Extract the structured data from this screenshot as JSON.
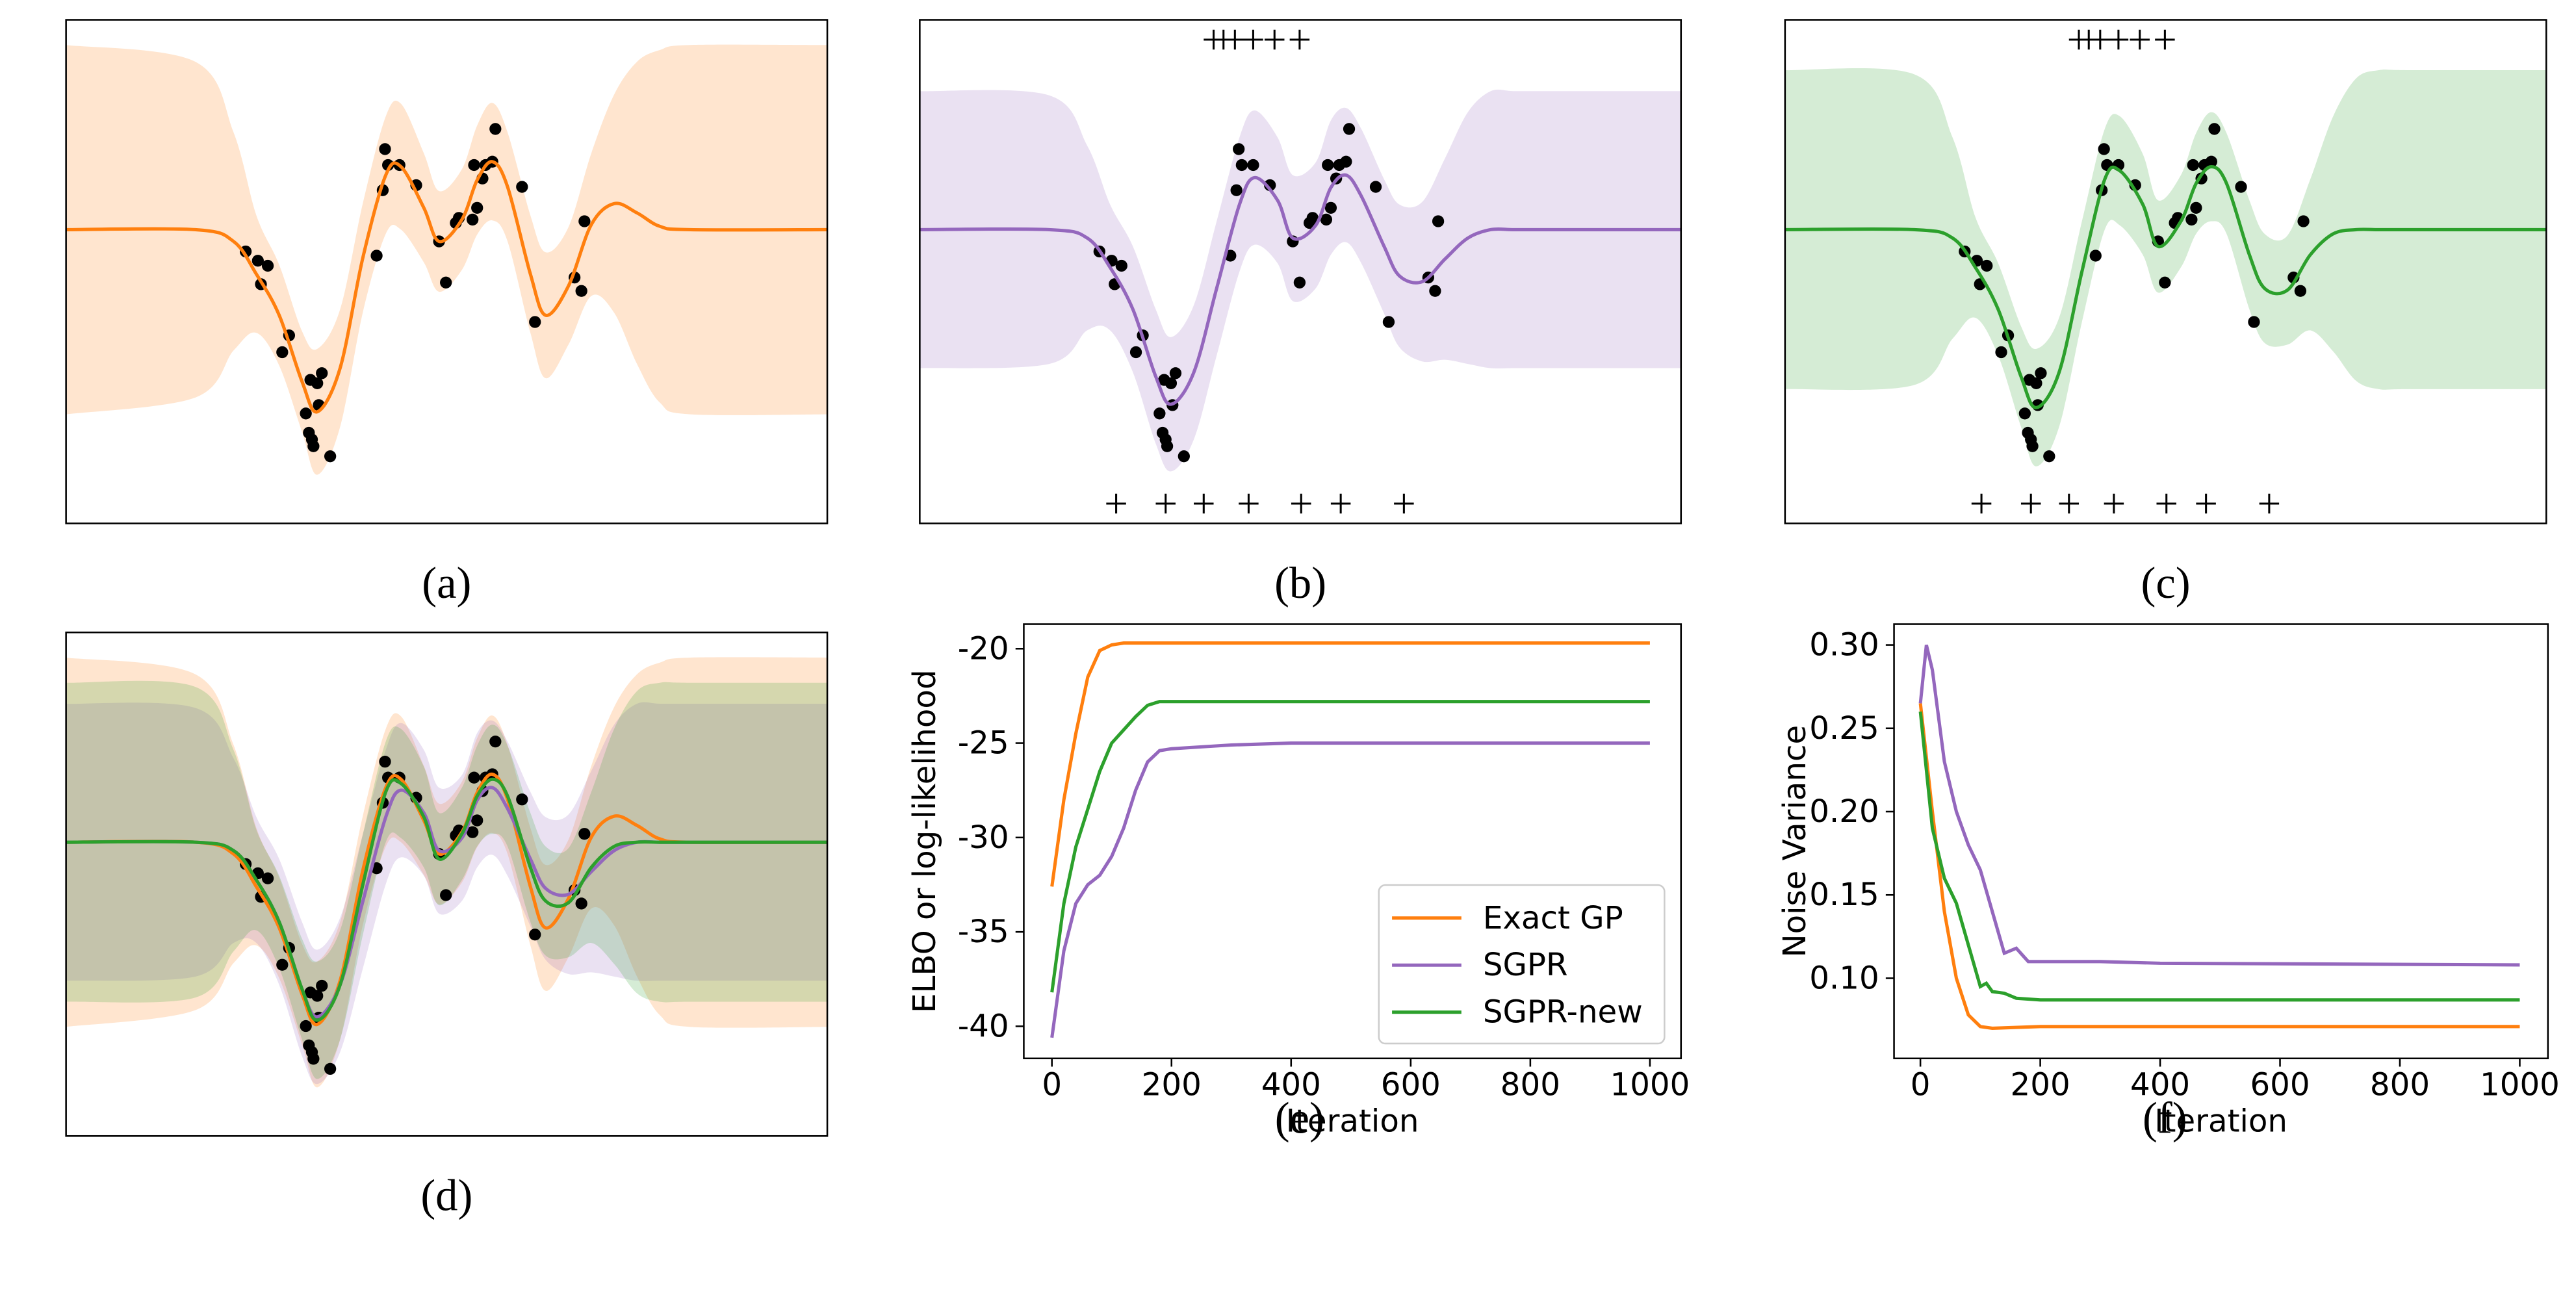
{
  "observations": {
    "x": [
      23.6,
      25.2,
      26.5,
      25.6,
      29.3,
      28.4,
      31.5,
      32.1,
      33.6,
      33.0,
      31.9,
      32.3,
      32.5,
      34.7,
      33.2,
      40.8,
      41.6,
      41.9,
      42.3,
      43.8,
      46.0,
      49.0,
      49.9,
      51.2,
      51.6,
      53.4,
      54.0,
      53.6,
      54.7,
      55.1,
      56.4,
      56.0,
      59.9,
      61.6,
      66.8,
      67.7,
      68.1
    ],
    "y": [
      -0.26,
      -0.37,
      -0.43,
      -0.65,
      -1.26,
      -1.46,
      -2.19,
      -1.79,
      -1.71,
      -1.83,
      -2.42,
      -2.5,
      -2.58,
      -2.7,
      -2.09,
      -0.31,
      0.47,
      0.96,
      0.77,
      0.77,
      0.53,
      -0.14,
      -0.63,
      0.08,
      0.14,
      0.12,
      0.26,
      0.77,
      0.61,
      0.77,
      1.2,
      0.81,
      0.51,
      -1.1,
      -0.57,
      -0.73,
      0.1
    ]
  },
  "chart_data": [
    {
      "type": "gp",
      "caption": "(a)",
      "xlim": [
        0,
        100
      ],
      "ylim": [
        -3.5,
        2.5
      ],
      "x": [
        0,
        17,
        22,
        25,
        28,
        31,
        33,
        36,
        39,
        42,
        44,
        47,
        49,
        52,
        54,
        56,
        58,
        61,
        63,
        66,
        69,
        72,
        75,
        78,
        82,
        100
      ],
      "series": [
        {
          "color": "#ff7f0e",
          "values": [
            0,
            0,
            -0.14,
            -0.53,
            -1.02,
            -1.81,
            -2.17,
            -1.65,
            -0.33,
            0.65,
            0.75,
            0.26,
            -0.14,
            0.12,
            0.59,
            0.81,
            0.51,
            -0.53,
            -1.02,
            -0.67,
            0.06,
            0.31,
            0.2,
            0.04,
            0,
            0
          ],
          "spread": [
            2.2,
            2.0,
            1.3,
            0.7,
            0.6,
            0.6,
            0.75,
            0.7,
            0.65,
            0.7,
            0.75,
            0.65,
            0.6,
            0.6,
            0.65,
            0.7,
            0.65,
            0.7,
            0.75,
            0.7,
            0.85,
            1.3,
            1.8,
            2.1,
            2.2,
            2.2
          ]
        }
      ]
    },
    {
      "type": "gp",
      "caption": "(b)",
      "xlim": [
        0,
        100
      ],
      "ylim": [
        -3.5,
        2.5
      ],
      "x": [
        0,
        17,
        22,
        25,
        28,
        31,
        33,
        36,
        39,
        42,
        44,
        47,
        49,
        52,
        54,
        56,
        58,
        61,
        63,
        66,
        69,
        72,
        75,
        78,
        82,
        100
      ],
      "series": [
        {
          "color": "#9467bd",
          "values": [
            0,
            0,
            -0.1,
            -0.45,
            -0.95,
            -1.75,
            -2.08,
            -1.7,
            -0.7,
            0.3,
            0.62,
            0.35,
            -0.1,
            0.05,
            0.5,
            0.65,
            0.4,
            -0.2,
            -0.55,
            -0.62,
            -0.35,
            -0.1,
            0,
            0,
            0,
            0
          ],
          "spread": [
            1.65,
            1.6,
            1.1,
            0.75,
            0.75,
            0.8,
            0.8,
            0.8,
            0.8,
            0.8,
            0.8,
            0.75,
            0.75,
            0.75,
            0.8,
            0.8,
            0.8,
            0.8,
            0.85,
            0.95,
            1.2,
            1.5,
            1.65,
            1.65,
            1.65,
            1.65
          ]
        }
      ],
      "inducing_points_top": [
        38.6,
        39.9,
        41.4,
        43.8,
        46.6,
        49.9
      ],
      "inducing_points_bottom": [
        25.8,
        32.3,
        37.3,
        43.2,
        50.1,
        55.3,
        63.6
      ]
    },
    {
      "type": "gp",
      "caption": "(c)",
      "xlim": [
        0,
        100
      ],
      "ylim": [
        -3.5,
        2.5
      ],
      "x": [
        0,
        17,
        22,
        25,
        28,
        31,
        33,
        36,
        39,
        42,
        44,
        47,
        49,
        52,
        54,
        56,
        58,
        61,
        63,
        66,
        69,
        72,
        75,
        78,
        82,
        100
      ],
      "series": [
        {
          "color": "#2ca02c",
          "values": [
            0,
            0,
            -0.1,
            -0.45,
            -0.95,
            -1.75,
            -2.12,
            -1.7,
            -0.5,
            0.6,
            0.7,
            0.3,
            -0.2,
            0.1,
            0.55,
            0.75,
            0.55,
            -0.3,
            -0.7,
            -0.72,
            -0.3,
            -0.05,
            0,
            0,
            0,
            0
          ],
          "spread": [
            1.9,
            1.85,
            1.2,
            0.6,
            0.55,
            0.6,
            0.7,
            0.65,
            0.6,
            0.6,
            0.65,
            0.6,
            0.55,
            0.55,
            0.6,
            0.65,
            0.6,
            0.65,
            0.65,
            0.65,
            0.9,
            1.4,
            1.8,
            1.9,
            1.9,
            1.9
          ]
        }
      ],
      "inducing_points_top": [
        38.6,
        39.9,
        41.4,
        43.8,
        46.6,
        49.9
      ],
      "inducing_points_bottom": [
        25.8,
        32.3,
        37.3,
        43.2,
        50.1,
        55.3,
        63.6
      ]
    },
    {
      "type": "gp-overlay",
      "caption": "(d)",
      "xlim": [
        0,
        100
      ],
      "ylim": [
        -3.5,
        2.5
      ]
    },
    {
      "type": "line",
      "caption": "(e)",
      "xlabel": "Iteration",
      "ylabel": "ELBO or log-likelihood",
      "xlim": [
        -47,
        1052
      ],
      "ylim": [
        -41.7,
        -18.7
      ],
      "xticks": [
        0,
        200,
        400,
        600,
        800,
        1000
      ],
      "yticks": [
        -40,
        -35,
        -30,
        -25,
        -20
      ],
      "legend": "lower right",
      "x": [
        0,
        20,
        40,
        60,
        80,
        100,
        120,
        140,
        160,
        180,
        200,
        250,
        300,
        400,
        600,
        800,
        1000
      ],
      "series": [
        {
          "name": "Exact GP",
          "color": "#ff7f0e",
          "values": [
            -32.6,
            -28,
            -24.5,
            -21.5,
            -20.1,
            -19.8,
            -19.7,
            -19.7,
            -19.7,
            -19.7,
            -19.7,
            -19.7,
            -19.7,
            -19.7,
            -19.7,
            -19.7,
            -19.7
          ]
        },
        {
          "name": "SGPR",
          "color": "#9467bd",
          "values": [
            -40.6,
            -36,
            -33.5,
            -32.5,
            -32,
            -31,
            -29.5,
            -27.5,
            -26,
            -25.4,
            -25.3,
            -25.2,
            -25.1,
            -25,
            -25,
            -25,
            -25
          ]
        },
        {
          "name": "SGPR-new",
          "color": "#2ca02c",
          "values": [
            -38.2,
            -33.5,
            -30.5,
            -28.5,
            -26.5,
            -25,
            -24.3,
            -23.6,
            -23,
            -22.8,
            -22.8,
            -22.8,
            -22.8,
            -22.8,
            -22.8,
            -22.8,
            -22.8
          ]
        }
      ]
    },
    {
      "type": "line",
      "caption": "(f)",
      "xlabel": "Iteration",
      "ylabel": "Noise Variance",
      "xlim": [
        -44,
        1047
      ],
      "ylim": [
        0.0519,
        0.3125
      ],
      "xticks": [
        0,
        200,
        400,
        600,
        800,
        1000
      ],
      "yticks": [
        {
          "value": 0.1,
          "label": "0.10"
        },
        0.15,
        {
          "value": 0.2,
          "label": "0.20"
        },
        0.25,
        {
          "value": 0.3,
          "label": "0.30"
        }
      ],
      "series": [
        {
          "color": "#ff7f0e",
          "x": [
            0,
            20,
            40,
            60,
            80,
            100,
            120,
            200,
            1000
          ],
          "values": [
            0.265,
            0.2,
            0.14,
            0.1,
            0.078,
            0.071,
            0.07,
            0.071,
            0.071
          ]
        },
        {
          "color": "#9467bd",
          "x": [
            0,
            10,
            20,
            40,
            60,
            80,
            100,
            120,
            140,
            160,
            180,
            200,
            300,
            400,
            1000
          ],
          "values": [
            0.265,
            0.3,
            0.285,
            0.23,
            0.2,
            0.18,
            0.165,
            0.14,
            0.115,
            0.118,
            0.11,
            0.11,
            0.11,
            0.109,
            0.108
          ]
        },
        {
          "color": "#2ca02c",
          "x": [
            0,
            20,
            40,
            60,
            80,
            100,
            110,
            120,
            140,
            160,
            200,
            1000
          ],
          "values": [
            0.26,
            0.19,
            0.16,
            0.145,
            0.12,
            0.095,
            0.097,
            0.092,
            0.091,
            0.088,
            0.087,
            0.087
          ]
        }
      ]
    }
  ]
}
